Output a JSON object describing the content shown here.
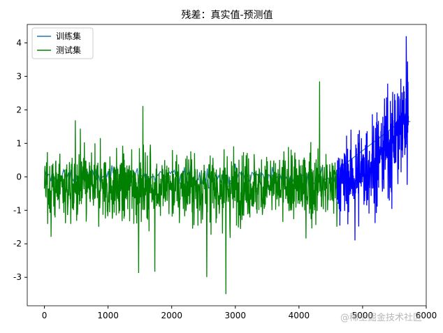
{
  "chart_data": {
    "type": "line",
    "title": "残差：真实值-预测值",
    "xlim": [
      -270,
      6000
    ],
    "ylim": [
      -3.85,
      4.55
    ],
    "x_ticks": [
      0,
      1000,
      2000,
      3000,
      4000,
      5000,
      6000
    ],
    "y_ticks": [
      -3,
      -2,
      -1,
      0,
      1,
      2,
      3,
      4
    ],
    "legend_position": "top-left",
    "grid": false,
    "series": [
      {
        "name": "训练集",
        "color": "#1f77b4",
        "x_range": [
          0,
          5750
        ],
        "trend": "residual noise, mean ~0 up to x≈4600 then rising to ~1.7",
        "approx_y_min": -1.9,
        "approx_y_max": 4.2
      },
      {
        "name": "测试集",
        "color": "#008000",
        "x_range": [
          0,
          4600
        ],
        "mean": -0.3,
        "approx_y_min": -3.5,
        "approx_y_max": 2.85
      }
    ],
    "overlay_segment": {
      "color": "#0000ff",
      "x_range": [
        4600,
        5720
      ],
      "approx_y_min": -1.9,
      "approx_y_max": 4.2
    }
  },
  "watermark": "@稀土掘金技术社区"
}
